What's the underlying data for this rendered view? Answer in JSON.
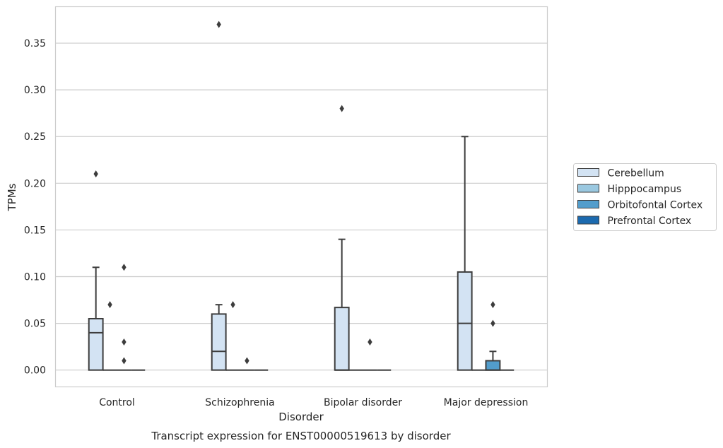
{
  "chart_data": {
    "type": "box",
    "xlabel": "Disorder",
    "ylabel": "TPMs",
    "caption": "Transcript expression for ENST00000519613 by disorder",
    "categories": [
      "Control",
      "Schizophrenia",
      "Bipolar disorder",
      "Major depression"
    ],
    "ylim": [
      -0.018,
      0.389
    ],
    "yticks": [
      0.0,
      0.05,
      0.1,
      0.15,
      0.2,
      0.25,
      0.3,
      0.35
    ],
    "ytick_labels": [
      "0.00",
      "0.05",
      "0.10",
      "0.15",
      "0.20",
      "0.25",
      "0.30",
      "0.35"
    ],
    "grid": "horizontal",
    "legend_placement": "right",
    "series": [
      {
        "name": "Cerebellum",
        "color": "#d3e3f3",
        "boxes": [
          {
            "q1": 0.0,
            "median": 0.04,
            "q3": 0.055,
            "whislo": 0.0,
            "whishi": 0.11,
            "fliers": [
              0.21
            ]
          },
          {
            "q1": 0.0,
            "median": 0.02,
            "q3": 0.06,
            "whislo": 0.0,
            "whishi": 0.07,
            "fliers": [
              0.37
            ]
          },
          {
            "q1": 0.0,
            "median": 0.0,
            "q3": 0.067,
            "whislo": 0.0,
            "whishi": 0.14,
            "fliers": [
              0.28
            ]
          },
          {
            "q1": 0.0,
            "median": 0.05,
            "q3": 0.105,
            "whislo": 0.0,
            "whishi": 0.25,
            "fliers": []
          }
        ]
      },
      {
        "name": "Hipppocampus",
        "color": "#9ac8e0",
        "boxes": [
          {
            "q1": 0.0,
            "median": 0.0,
            "q3": 0.0,
            "whislo": 0.0,
            "whishi": 0.0,
            "fliers": [
              0.07
            ]
          },
          {
            "q1": 0.0,
            "median": 0.0,
            "q3": 0.0,
            "whislo": 0.0,
            "whishi": 0.0,
            "fliers": [
              0.07
            ]
          },
          {
            "q1": 0.0,
            "median": 0.0,
            "q3": 0.0,
            "whislo": 0.0,
            "whishi": 0.0,
            "fliers": []
          },
          {
            "q1": 0.0,
            "median": 0.0,
            "q3": 0.0,
            "whislo": 0.0,
            "whishi": 0.0,
            "fliers": []
          }
        ]
      },
      {
        "name": "Orbitofontal Cortex",
        "color": "#529dcc",
        "boxes": [
          {
            "q1": 0.0,
            "median": 0.0,
            "q3": 0.0,
            "whislo": 0.0,
            "whishi": 0.0,
            "fliers": [
              0.11,
              0.03,
              0.01
            ]
          },
          {
            "q1": 0.0,
            "median": 0.0,
            "q3": 0.0,
            "whislo": 0.0,
            "whishi": 0.0,
            "fliers": [
              0.01
            ]
          },
          {
            "q1": 0.0,
            "median": 0.0,
            "q3": 0.0,
            "whislo": 0.0,
            "whishi": 0.0,
            "fliers": [
              0.03
            ]
          },
          {
            "q1": 0.0,
            "median": 0.0,
            "q3": 0.01,
            "whislo": 0.0,
            "whishi": 0.02,
            "fliers": [
              0.07,
              0.05
            ]
          }
        ]
      },
      {
        "name": "Prefrontal Cortex",
        "color": "#1c6aaf",
        "boxes": [
          {
            "q1": 0.0,
            "median": 0.0,
            "q3": 0.0,
            "whislo": 0.0,
            "whishi": 0.0,
            "fliers": []
          },
          {
            "q1": 0.0,
            "median": 0.0,
            "q3": 0.0,
            "whislo": 0.0,
            "whishi": 0.0,
            "fliers": []
          },
          {
            "q1": 0.0,
            "median": 0.0,
            "q3": 0.0,
            "whislo": 0.0,
            "whishi": 0.0,
            "fliers": []
          },
          {
            "q1": 0.0,
            "median": 0.0,
            "q3": 0.0,
            "whislo": 0.0,
            "whishi": 0.0,
            "fliers": []
          }
        ]
      }
    ]
  }
}
